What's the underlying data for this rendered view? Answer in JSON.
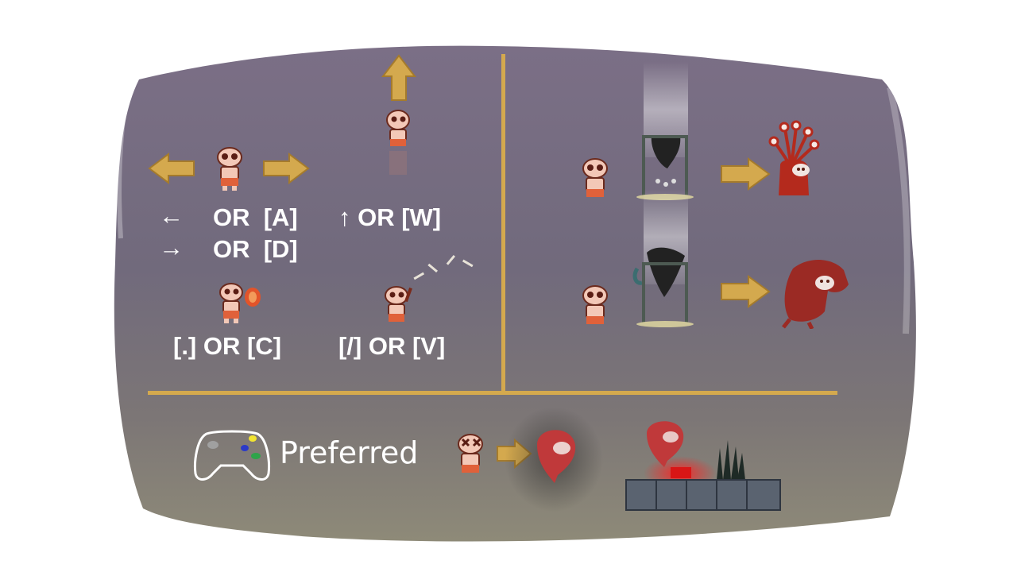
{
  "controls": {
    "move_left_key": "←",
    "move_left_alt": "OR  [A]",
    "move_right_key": "→",
    "move_right_alt": "OR  [D]",
    "jump": "↑ OR [W]",
    "attack": "[.] OR [C]",
    "throw": "[/] OR [V]"
  },
  "gamepad": {
    "label": "Preferred",
    "icon": "gamepad-icon"
  },
  "icons": {
    "player": "skeleton-player-icon",
    "arrow": "gold-arrow-icon",
    "transform_beast_1": "red-many-eyed-monster-icon",
    "transform_beast_2": "red-wolf-beast-icon",
    "death": "dead-skeleton-icon",
    "ghost": "red-ghost-icon"
  },
  "colors": {
    "gold": "#d4a94e",
    "panel": "#7a7185",
    "monster_red": "#b42a1d",
    "ghost_red": "#c0393a"
  }
}
